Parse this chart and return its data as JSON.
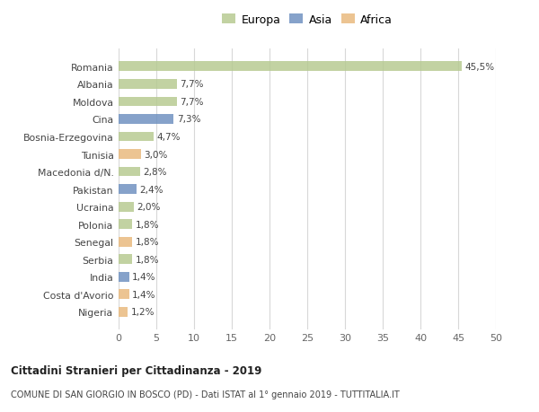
{
  "categories": [
    "Nigeria",
    "Costa d'Avorio",
    "India",
    "Serbia",
    "Senegal",
    "Polonia",
    "Ucraina",
    "Pakistan",
    "Macedonia d/N.",
    "Tunisia",
    "Bosnia-Erzegovina",
    "Cina",
    "Moldova",
    "Albania",
    "Romania"
  ],
  "values": [
    1.2,
    1.4,
    1.4,
    1.8,
    1.8,
    1.8,
    2.0,
    2.4,
    2.8,
    3.0,
    4.7,
    7.3,
    7.7,
    7.7,
    45.5
  ],
  "labels": [
    "1,2%",
    "1,4%",
    "1,4%",
    "1,8%",
    "1,8%",
    "1,8%",
    "2,0%",
    "2,4%",
    "2,8%",
    "3,0%",
    "4,7%",
    "7,3%",
    "7,7%",
    "7,7%",
    "45,5%"
  ],
  "continents": [
    "Africa",
    "Africa",
    "Asia",
    "Europa",
    "Africa",
    "Europa",
    "Europa",
    "Asia",
    "Europa",
    "Africa",
    "Europa",
    "Asia",
    "Europa",
    "Europa",
    "Europa"
  ],
  "colors": {
    "Europa": "#b5c98e",
    "Asia": "#6b8ebf",
    "Africa": "#e8b87a"
  },
  "legend_labels": [
    "Europa",
    "Asia",
    "Africa"
  ],
  "legend_colors": [
    "#b5c98e",
    "#6b8ebf",
    "#e8b87a"
  ],
  "title_bold": "Cittadini Stranieri per Cittadinanza - 2019",
  "subtitle": "COMUNE DI SAN GIORGIO IN BOSCO (PD) - Dati ISTAT al 1° gennaio 2019 - TUTTITALIA.IT",
  "xlim": [
    0,
    50
  ],
  "xticks": [
    0,
    5,
    10,
    15,
    20,
    25,
    30,
    35,
    40,
    45,
    50
  ],
  "background_color": "#ffffff",
  "grid_color": "#d8d8d8",
  "bar_height": 0.55
}
